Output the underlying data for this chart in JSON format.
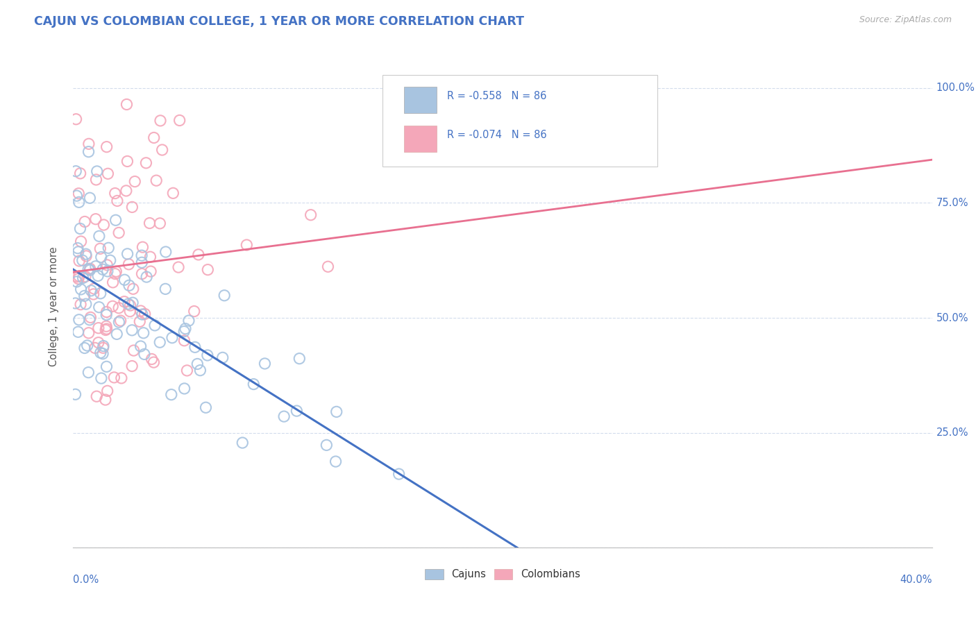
{
  "title": "CAJUN VS COLOMBIAN COLLEGE, 1 YEAR OR MORE CORRELATION CHART",
  "source_text": "Source: ZipAtlas.com",
  "ylabel": "College, 1 year or more",
  "legend_cajuns": "Cajuns",
  "legend_colombians": "Colombians",
  "R_cajun": -0.558,
  "R_colombian": -0.074,
  "N": 86,
  "cajun_color": "#a8c4e0",
  "colombian_color": "#f4a7b9",
  "cajun_line_color": "#4472c4",
  "colombian_line_color": "#e87090",
  "background_color": "#ffffff",
  "grid_color": "#c8d4e8",
  "title_color": "#4472c4",
  "source_color": "#aaaaaa",
  "cajun_seed": 42,
  "colombian_seed": 123,
  "xlim": [
    0.0,
    0.4
  ],
  "ylim": [
    0.0,
    1.05
  ],
  "y_tick_vals": [
    0.0,
    0.25,
    0.5,
    0.75,
    1.0
  ],
  "y_tick_labels": [
    "",
    "25.0%",
    "50.0%",
    "75.0%",
    "100.0%"
  ]
}
